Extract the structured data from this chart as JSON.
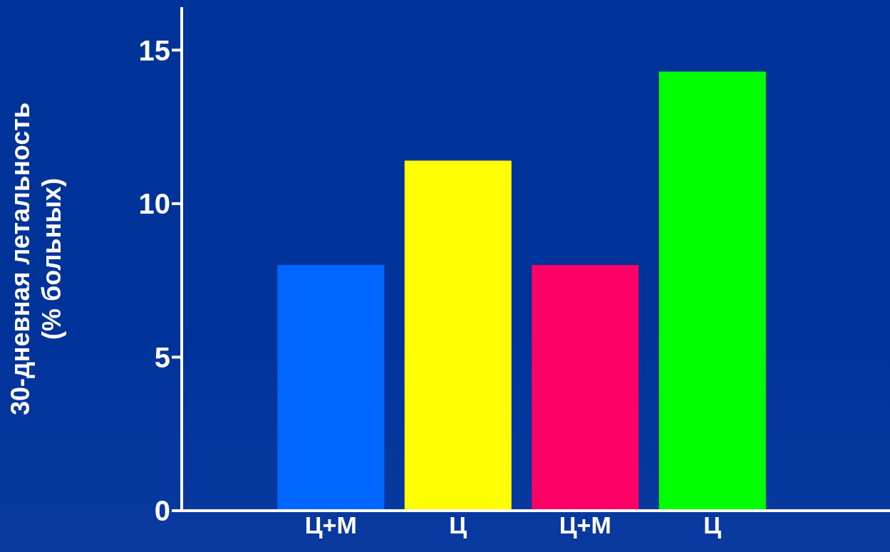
{
  "chart_data": {
    "type": "bar",
    "ylabel": "30-дневная летальность\n(% больных)",
    "categories": [
      "Ц+М",
      "Ц",
      "Ц+М",
      "Ц"
    ],
    "values": [
      8.0,
      11.4,
      8.0,
      14.3
    ],
    "colors": [
      "#0066ff",
      "#ffff00",
      "#ff0066",
      "#00ff00"
    ],
    "ylim": [
      0,
      16.4
    ],
    "yticks": [
      0,
      5,
      10,
      15
    ],
    "grid": false,
    "legend": false
  }
}
